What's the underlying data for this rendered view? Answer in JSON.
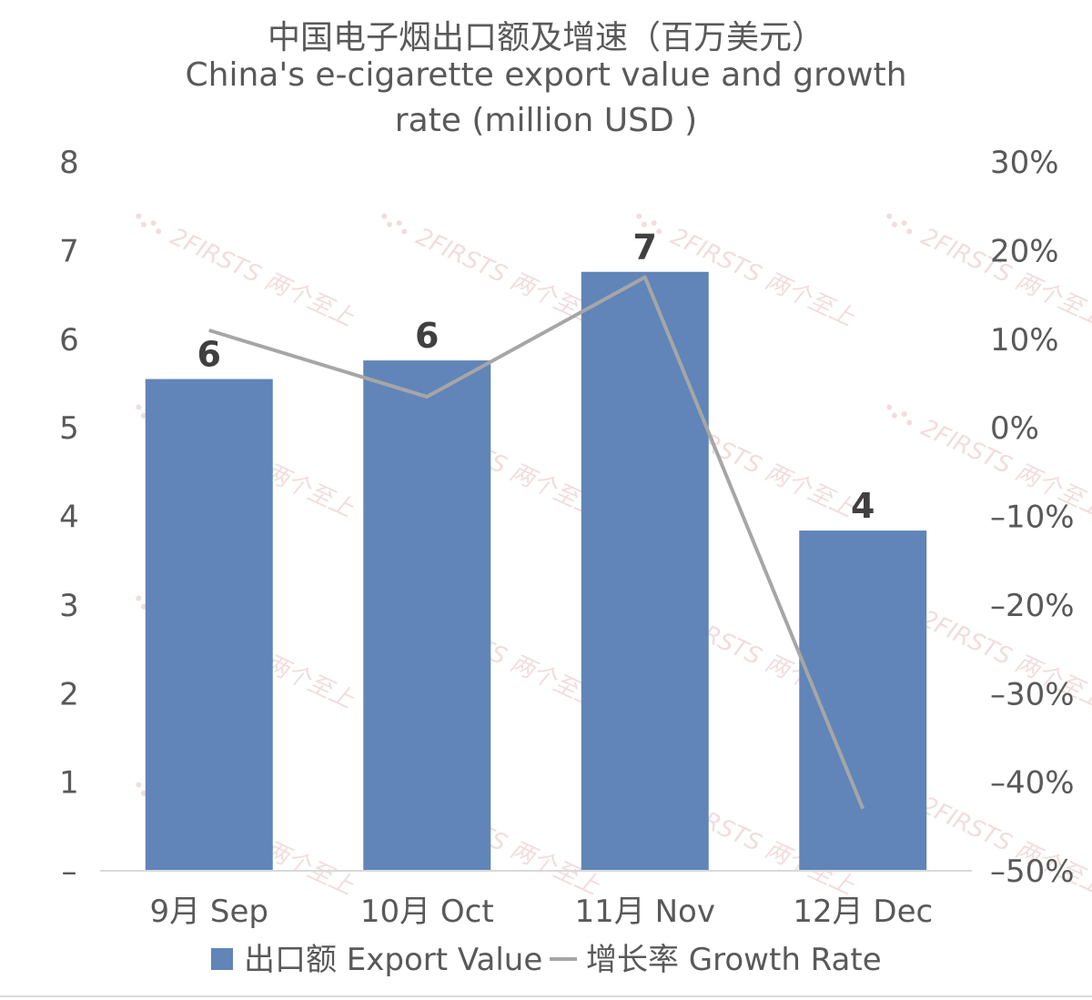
{
  "chart_data": {
    "type": "bar",
    "title_cn": "中国电子烟出口额及增速（百万美元）",
    "title_en_line1": "China's e-cigarette export value and growth",
    "title_en_line2": "rate (million USD )",
    "categories": [
      "9月 Sep",
      "10月 Oct",
      "11月 Nov",
      "12月 Dec"
    ],
    "series": [
      {
        "name": "出口额 Export Value",
        "type": "bar",
        "axis": "left",
        "values": [
          5.55,
          5.76,
          6.76,
          3.84
        ],
        "data_labels": [
          "6",
          "6",
          "7",
          "4"
        ],
        "color": "#6185b8"
      },
      {
        "name": "增长率 Growth Rate",
        "type": "line",
        "axis": "right",
        "values": [
          11,
          3.5,
          17,
          -43
        ],
        "color": "#a6a6a6"
      }
    ],
    "y_left": {
      "ylim": [
        0,
        8
      ],
      "tick_labels": [
        "–",
        "1",
        "2",
        "3",
        "4",
        "5",
        "6",
        "7",
        "8"
      ]
    },
    "y_right": {
      "ylim": [
        -50,
        30
      ],
      "tick_labels": [
        "–50%",
        "–40%",
        "–30%",
        "–20%",
        "–10%",
        "0%",
        "10%",
        "20%",
        "30%"
      ]
    },
    "grid": false,
    "legend_position": "bottom",
    "watermark": "2FIRSTS 两个至上"
  }
}
